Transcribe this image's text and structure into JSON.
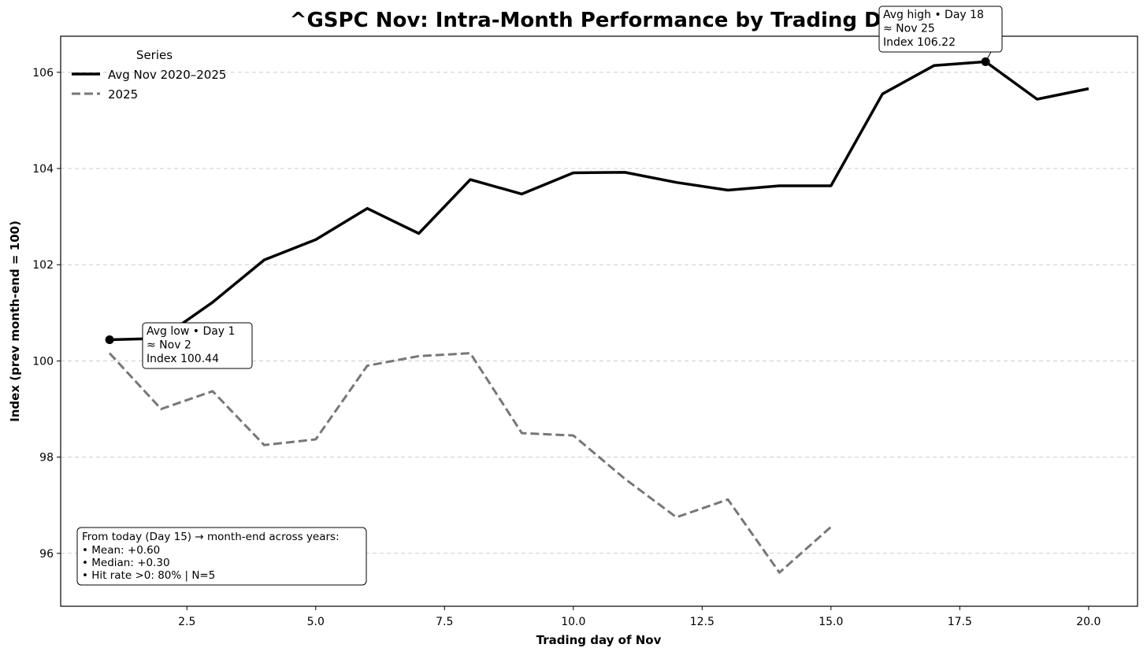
{
  "chart_data": {
    "type": "line",
    "title": "^GSPC Nov: Intra-Month Performance by Trading Day",
    "xlabel": "Trading day of Nov",
    "ylabel": "Index (prev month-end = 100)",
    "xlim": [
      0.05,
      20.95
    ],
    "ylim": [
      94.9,
      106.75
    ],
    "xticks": [
      2.5,
      5.0,
      7.5,
      10.0,
      12.5,
      15.0,
      17.5,
      20.0
    ],
    "xtick_labels": [
      "2.5",
      "5.0",
      "7.5",
      "10.0",
      "12.5",
      "15.0",
      "17.5",
      "20.0"
    ],
    "yticks": [
      96,
      98,
      100,
      102,
      104,
      106
    ],
    "ytick_labels": [
      "96",
      "98",
      "100",
      "102",
      "104",
      "106"
    ],
    "grid": "horizontal, dashed",
    "legend": {
      "title": "Series",
      "placement": "top-left"
    },
    "series": [
      {
        "name": "Avg Nov 2020–2025",
        "style": "solid",
        "color": "#000000",
        "x": [
          1,
          2,
          3,
          4,
          5,
          6,
          7,
          8,
          9,
          10,
          11,
          12,
          13,
          14,
          15,
          16,
          17,
          18,
          19,
          20
        ],
        "values": [
          100.44,
          100.47,
          101.22,
          102.1,
          102.52,
          103.17,
          102.65,
          103.77,
          103.47,
          103.91,
          103.92,
          103.71,
          103.55,
          103.64,
          103.64,
          105.55,
          106.14,
          106.22,
          105.44,
          105.66
        ]
      },
      {
        "name": "2025",
        "style": "dashed",
        "color": "#777777",
        "x": [
          1,
          2,
          3,
          4,
          5,
          6,
          7,
          8,
          9,
          10,
          11,
          12,
          13,
          14,
          15
        ],
        "values": [
          100.16,
          99.0,
          99.37,
          98.25,
          98.37,
          99.9,
          100.1,
          100.16,
          98.5,
          98.45,
          97.55,
          96.75,
          97.12,
          95.6,
          96.55
        ]
      }
    ],
    "annotations": [
      {
        "kind": "low",
        "x": 1,
        "y": 100.44,
        "lines": [
          "Avg low • Day 1",
          "≈ Nov 2",
          "Index 100.44"
        ]
      },
      {
        "kind": "high",
        "x": 18,
        "y": 106.22,
        "lines": [
          "Avg high • Day 18",
          "≈ Nov 25",
          "Index 106.22"
        ]
      }
    ],
    "stats_box": {
      "placement": "bottom-left",
      "lines": [
        "From today (Day 15) → month-end across years:",
        "• Mean: +0.60",
        "• Median: +0.30",
        "• Hit rate >0: 80%  | N=5"
      ]
    }
  }
}
